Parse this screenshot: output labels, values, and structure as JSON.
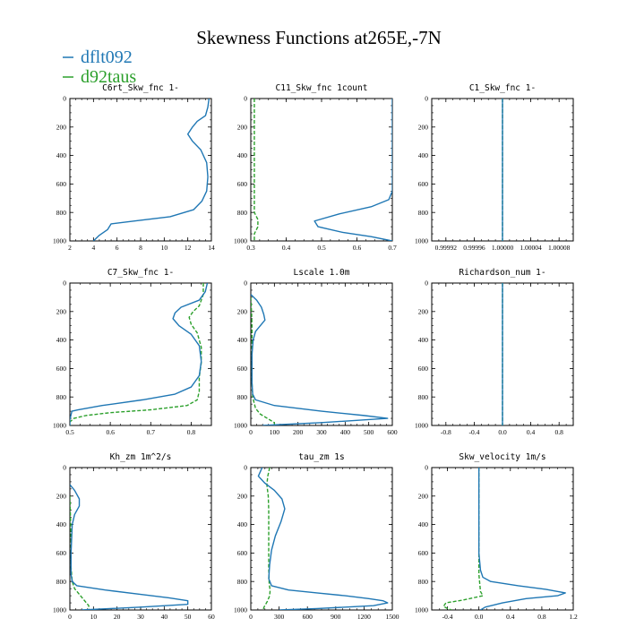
{
  "figure": {
    "title": "Skewness Functions at265E,-7N",
    "legend": [
      {
        "name": "dflt092",
        "color": "#1f77b4"
      },
      {
        "name": "d92taus",
        "color": "#2ca02c"
      }
    ]
  },
  "chart_data": [
    {
      "type": "line",
      "title": "C6rt_Skw_fnc  1-",
      "xlim": [
        2,
        14
      ],
      "ylim": [
        1000,
        0
      ],
      "xticks": [
        2,
        4,
        6,
        8,
        10,
        12,
        14
      ],
      "yticks": [
        0,
        200,
        400,
        600,
        800,
        1000
      ],
      "series": [
        {
          "name": "dflt092",
          "points": [
            [
              13.8,
              0
            ],
            [
              13.7,
              60
            ],
            [
              13.5,
              120
            ],
            [
              12.8,
              160
            ],
            [
              12.4,
              200
            ],
            [
              12.0,
              250
            ],
            [
              12.4,
              300
            ],
            [
              13.1,
              360
            ],
            [
              13.6,
              450
            ],
            [
              13.7,
              550
            ],
            [
              13.6,
              650
            ],
            [
              13.2,
              720
            ],
            [
              12.5,
              780
            ],
            [
              10.5,
              830
            ],
            [
              7.5,
              860
            ],
            [
              5.5,
              880
            ],
            [
              5.2,
              920
            ],
            [
              4.5,
              960
            ],
            [
              4.0,
              1000
            ]
          ]
        }
      ]
    },
    {
      "type": "line",
      "title": "C11_Skw_fnc  1count",
      "xlim": [
        0.3,
        0.7
      ],
      "ylim": [
        1000,
        0
      ],
      "xticks": [
        0.3,
        0.4,
        0.5,
        0.6,
        0.7
      ],
      "yticks": [
        0,
        200,
        400,
        600,
        800,
        1000
      ],
      "series": [
        {
          "name": "dflt092",
          "points": [
            [
              0.7,
              0
            ],
            [
              0.7,
              400
            ],
            [
              0.7,
              650
            ],
            [
              0.69,
              710
            ],
            [
              0.64,
              760
            ],
            [
              0.55,
              810
            ],
            [
              0.48,
              860
            ],
            [
              0.49,
              900
            ],
            [
              0.56,
              940
            ],
            [
              0.64,
              970
            ],
            [
              0.7,
              1000
            ]
          ]
        },
        {
          "name": "d92taus",
          "points": [
            [
              0.31,
              0
            ],
            [
              0.31,
              200
            ],
            [
              0.31,
              500
            ],
            [
              0.31,
              800
            ],
            [
              0.32,
              850
            ],
            [
              0.32,
              900
            ],
            [
              0.31,
              950
            ],
            [
              0.31,
              1000
            ]
          ]
        }
      ]
    },
    {
      "type": "line",
      "title": "C1_Skw_fnc  1-",
      "xlim": [
        0.9999,
        1.0001
      ],
      "ylim": [
        1000,
        0
      ],
      "xticks": [
        0.99992,
        0.99996,
        1.0,
        1.00004,
        1.00008
      ],
      "yticks": [
        0,
        200,
        400,
        600,
        800,
        1000
      ],
      "series": [
        {
          "name": "dflt092",
          "points": [
            [
              1.0,
              0
            ],
            [
              1.0,
              1000
            ]
          ]
        },
        {
          "name": "d92taus",
          "points": [
            [
              1.0,
              0
            ],
            [
              1.0,
              1000
            ]
          ]
        }
      ]
    },
    {
      "type": "line",
      "title": "C7_Skw_fnc  1-",
      "xlim": [
        0.5,
        0.85
      ],
      "ylim": [
        1000,
        0
      ],
      "xticks": [
        0.5,
        0.6,
        0.7,
        0.8
      ],
      "yticks": [
        0,
        200,
        400,
        600,
        800,
        1000
      ],
      "series": [
        {
          "name": "dflt092",
          "points": [
            [
              0.84,
              0
            ],
            [
              0.835,
              60
            ],
            [
              0.82,
              120
            ],
            [
              0.775,
              170
            ],
            [
              0.76,
              210
            ],
            [
              0.755,
              250
            ],
            [
              0.77,
              300
            ],
            [
              0.8,
              360
            ],
            [
              0.82,
              440
            ],
            [
              0.825,
              550
            ],
            [
              0.82,
              650
            ],
            [
              0.8,
              730
            ],
            [
              0.76,
              780
            ],
            [
              0.68,
              820
            ],
            [
              0.58,
              860
            ],
            [
              0.52,
              890
            ],
            [
              0.505,
              900
            ],
            [
              0.5,
              960
            ],
            [
              0.5,
              1000
            ]
          ]
        },
        {
          "name": "d92taus",
          "points": [
            [
              0.83,
              0
            ],
            [
              0.83,
              80
            ],
            [
              0.82,
              160
            ],
            [
              0.805,
              200
            ],
            [
              0.795,
              240
            ],
            [
              0.8,
              290
            ],
            [
              0.815,
              350
            ],
            [
              0.825,
              450
            ],
            [
              0.825,
              560
            ],
            [
              0.82,
              660
            ],
            [
              0.82,
              760
            ],
            [
              0.815,
              820
            ],
            [
              0.79,
              860
            ],
            [
              0.7,
              890
            ],
            [
              0.6,
              910
            ],
            [
              0.54,
              930
            ],
            [
              0.51,
              950
            ],
            [
              0.5,
              975
            ],
            [
              0.5,
              1000
            ]
          ]
        }
      ]
    },
    {
      "type": "line",
      "title": "Lscale  1.0m",
      "xlim": [
        0,
        600
      ],
      "ylim": [
        1000,
        0
      ],
      "xticks": [
        0,
        100,
        200,
        300,
        400,
        500,
        600
      ],
      "yticks": [
        0,
        200,
        400,
        600,
        800,
        1000
      ],
      "series": [
        {
          "name": "dflt092",
          "points": [
            [
              0,
              80
            ],
            [
              25,
              120
            ],
            [
              45,
              170
            ],
            [
              55,
              220
            ],
            [
              60,
              260
            ],
            [
              40,
              300
            ],
            [
              20,
              340
            ],
            [
              10,
              400
            ],
            [
              5,
              500
            ],
            [
              5,
              600
            ],
            [
              5,
              700
            ],
            [
              8,
              780
            ],
            [
              20,
              820
            ],
            [
              100,
              860
            ],
            [
              300,
              900
            ],
            [
              480,
              930
            ],
            [
              580,
              950
            ],
            [
              300,
              980
            ],
            [
              50,
              1000
            ]
          ]
        },
        {
          "name": "d92taus",
          "points": [
            [
              0,
              100
            ],
            [
              3,
              200
            ],
            [
              5,
              300
            ],
            [
              5,
              500
            ],
            [
              5,
              700
            ],
            [
              8,
              800
            ],
            [
              20,
              880
            ],
            [
              40,
              920
            ],
            [
              70,
              950
            ],
            [
              100,
              980
            ],
            [
              100,
              1000
            ]
          ]
        }
      ]
    },
    {
      "type": "line",
      "title": "Richardson_num  1-",
      "xlim": [
        -1,
        1
      ],
      "ylim": [
        1000,
        0
      ],
      "xticks": [
        -0.8,
        -0.4,
        0.0,
        0.4,
        0.8
      ],
      "yticks": [
        0,
        200,
        400,
        600,
        800,
        1000
      ],
      "series": [
        {
          "name": "dflt092",
          "points": [
            [
              0,
              0
            ],
            [
              0,
              1000
            ]
          ]
        },
        {
          "name": "d92taus",
          "points": [
            [
              0,
              0
            ],
            [
              0,
              1000
            ]
          ]
        }
      ]
    },
    {
      "type": "line",
      "title": "Kh_zm  1m^2/s",
      "xlim": [
        0,
        60
      ],
      "ylim": [
        1000,
        0
      ],
      "xticks": [
        0,
        10,
        20,
        30,
        40,
        50,
        60
      ],
      "yticks": [
        0,
        200,
        400,
        600,
        800,
        1000
      ],
      "series": [
        {
          "name": "dflt092",
          "points": [
            [
              0,
              120
            ],
            [
              2,
              160
            ],
            [
              4,
              220
            ],
            [
              4,
              270
            ],
            [
              2,
              330
            ],
            [
              1,
              400
            ],
            [
              0.5,
              600
            ],
            [
              0.5,
              750
            ],
            [
              1,
              800
            ],
            [
              3,
              830
            ],
            [
              15,
              860
            ],
            [
              30,
              890
            ],
            [
              42,
              915
            ],
            [
              50,
              935
            ],
            [
              50,
              960
            ],
            [
              30,
              980
            ],
            [
              5,
              1000
            ]
          ]
        },
        {
          "name": "d92taus",
          "points": [
            [
              0,
              200
            ],
            [
              0.5,
              500
            ],
            [
              0.5,
              700
            ],
            [
              1,
              800
            ],
            [
              2,
              850
            ],
            [
              4,
              890
            ],
            [
              6,
              930
            ],
            [
              8,
              970
            ],
            [
              8,
              1000
            ]
          ]
        }
      ]
    },
    {
      "type": "line",
      "title": "tau_zm  1s",
      "xlim": [
        0,
        1500
      ],
      "ylim": [
        1000,
        0
      ],
      "xticks": [
        0,
        300,
        600,
        900,
        1200,
        1500
      ],
      "yticks": [
        0,
        200,
        400,
        600,
        800,
        1000
      ],
      "series": [
        {
          "name": "dflt092",
          "points": [
            [
              120,
              0
            ],
            [
              80,
              60
            ],
            [
              150,
              110
            ],
            [
              250,
              160
            ],
            [
              330,
              220
            ],
            [
              360,
              290
            ],
            [
              320,
              380
            ],
            [
              260,
              480
            ],
            [
              220,
              580
            ],
            [
              200,
              680
            ],
            [
              190,
              780
            ],
            [
              220,
              830
            ],
            [
              400,
              860
            ],
            [
              700,
              880
            ],
            [
              1000,
              900
            ],
            [
              1250,
              920
            ],
            [
              1400,
              935
            ],
            [
              1450,
              950
            ],
            [
              1300,
              970
            ],
            [
              700,
              990
            ],
            [
              300,
              1000
            ]
          ]
        },
        {
          "name": "d92taus",
          "points": [
            [
              200,
              0
            ],
            [
              180,
              60
            ],
            [
              170,
              120
            ],
            [
              185,
              200
            ],
            [
              190,
              300
            ],
            [
              190,
              500
            ],
            [
              190,
              700
            ],
            [
              195,
              820
            ],
            [
              205,
              860
            ],
            [
              200,
              900
            ],
            [
              175,
              940
            ],
            [
              140,
              980
            ],
            [
              130,
              1000
            ]
          ]
        }
      ]
    },
    {
      "type": "line",
      "title": "Skw_velocity  1m/s",
      "xlim": [
        -0.6,
        1.2
      ],
      "ylim": [
        1000,
        0
      ],
      "xticks": [
        -0.4,
        0.0,
        0.4,
        0.8,
        1.2
      ],
      "yticks": [
        0,
        200,
        400,
        600,
        800,
        1000
      ],
      "series": [
        {
          "name": "dflt092",
          "points": [
            [
              0,
              0
            ],
            [
              0,
              400
            ],
            [
              0,
              600
            ],
            [
              0.02,
              720
            ],
            [
              0.05,
              770
            ],
            [
              0.15,
              800
            ],
            [
              0.5,
              830
            ],
            [
              0.85,
              855
            ],
            [
              1.1,
              880
            ],
            [
              1.0,
              900
            ],
            [
              0.6,
              920
            ],
            [
              0.3,
              950
            ],
            [
              0.08,
              980
            ],
            [
              0.02,
              1000
            ]
          ]
        },
        {
          "name": "d92taus",
          "points": [
            [
              0,
              0
            ],
            [
              0,
              400
            ],
            [
              0,
              600
            ],
            [
              0,
              750
            ],
            [
              0.01,
              810
            ],
            [
              0.02,
              870
            ],
            [
              0.05,
              900
            ],
            [
              -0.2,
              930
            ],
            [
              -0.42,
              950
            ],
            [
              -0.45,
              975
            ],
            [
              -0.4,
              990
            ],
            [
              -0.35,
              1000
            ]
          ]
        }
      ]
    }
  ]
}
